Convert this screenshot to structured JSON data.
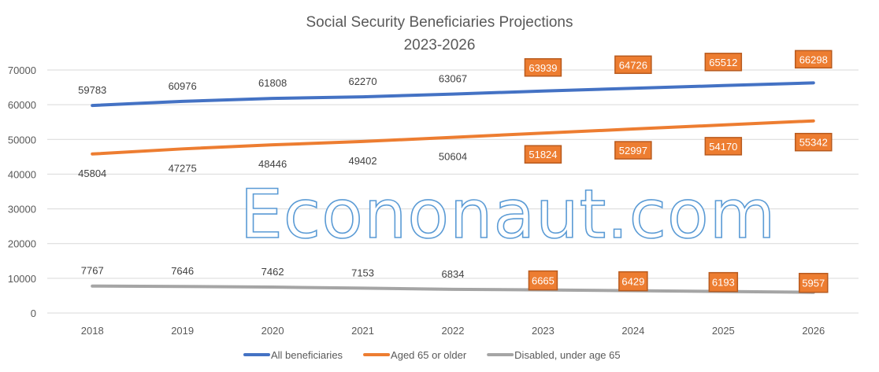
{
  "chart_data": {
    "type": "line",
    "title": [
      "Social Security Beneficiaries Projections",
      "2023-2026"
    ],
    "categories": [
      "2018",
      "2019",
      "2020",
      "2021",
      "2022",
      "2023",
      "2024",
      "2025",
      "2026"
    ],
    "ylim": [
      0,
      70000
    ],
    "yticks": [
      0,
      10000,
      20000,
      30000,
      40000,
      50000,
      60000,
      70000
    ],
    "grid": true,
    "legend_position": "bottom",
    "projection_labels_from": "2023",
    "series": [
      {
        "name": "All beneficiaries",
        "color": "#4472c4",
        "values": [
          59783,
          60976,
          61808,
          62270,
          63067,
          63939,
          64726,
          65512,
          66298
        ]
      },
      {
        "name": "Aged 65 or older",
        "color": "#ed7d31",
        "values": [
          45804,
          47275,
          48446,
          49402,
          50604,
          51824,
          52997,
          54170,
          55342
        ]
      },
      {
        "name": "Disabled, under age 65",
        "color": "#a5a5a5",
        "values": [
          7767,
          7646,
          7462,
          7153,
          6834,
          6665,
          6429,
          6193,
          5957
        ]
      }
    ],
    "label_box_color": "#ed7d31",
    "label_box_border": "#b85a1e"
  },
  "watermark": "Econonaut.com"
}
